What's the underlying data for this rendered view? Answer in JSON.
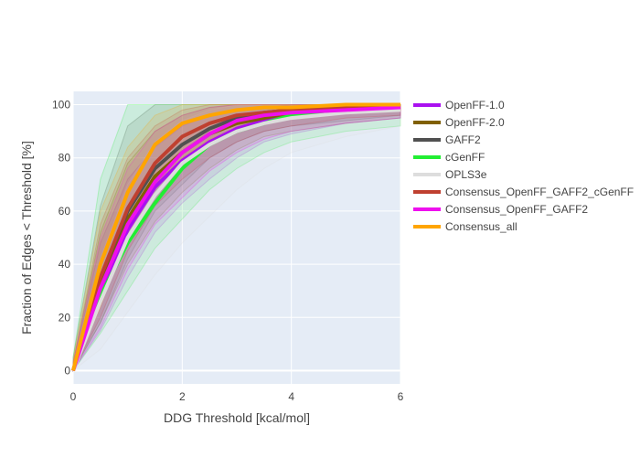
{
  "chart_data": {
    "type": "line",
    "title": "",
    "xlabel": "DDG Threshold [kcal/mol]",
    "ylabel": "Fraction of Edges < Threshold [%]",
    "xlim": [
      0,
      6
    ],
    "ylim": [
      -5,
      105
    ],
    "x_ticks": [
      0,
      2,
      4,
      6
    ],
    "y_ticks": [
      0,
      20,
      40,
      60,
      80,
      100
    ],
    "grid": true,
    "legend_position": "right",
    "plot_bgcolor": "#e5ecf6",
    "x": [
      0,
      0.5,
      1,
      1.5,
      2,
      2.5,
      3,
      3.5,
      4,
      5,
      6
    ],
    "series": [
      {
        "name": "OpenFF-1.0",
        "color": "#aa10f0",
        "values": [
          0,
          30,
          53,
          69,
          79,
          86,
          91,
          94,
          96,
          98,
          99
        ],
        "lower": [
          0,
          15,
          35,
          52,
          63,
          72,
          80,
          86,
          89,
          93,
          95
        ],
        "upper": [
          2,
          48,
          72,
          84,
          92,
          96,
          98,
          99,
          100,
          100,
          100
        ]
      },
      {
        "name": "OpenFF-2.0",
        "color": "#806000",
        "values": [
          0,
          33,
          57,
          73,
          82,
          89,
          93,
          95,
          97,
          98,
          99
        ],
        "lower": [
          0,
          18,
          40,
          56,
          67,
          76,
          83,
          88,
          90,
          93,
          95
        ],
        "upper": [
          3,
          52,
          78,
          90,
          96,
          99,
          100,
          100,
          100,
          100,
          100
        ]
      },
      {
        "name": "GAFF2",
        "color": "#505050",
        "values": [
          0,
          35,
          60,
          76,
          85,
          91,
          95,
          97,
          98,
          99,
          99
        ],
        "lower": [
          0,
          18,
          42,
          60,
          70,
          80,
          86,
          90,
          92,
          94,
          96
        ],
        "upper": [
          5,
          62,
          92,
          100,
          100,
          100,
          100,
          100,
          100,
          100,
          100
        ]
      },
      {
        "name": "cGenFF",
        "color": "#22ee33",
        "values": [
          0,
          28,
          48,
          63,
          76,
          85,
          90,
          93,
          96,
          98,
          99
        ],
        "lower": [
          0,
          14,
          30,
          46,
          57,
          68,
          76,
          82,
          86,
          90,
          92
        ],
        "upper": [
          5,
          72,
          100,
          100,
          100,
          100,
          100,
          100,
          100,
          100,
          100
        ]
      },
      {
        "name": "OPLS3e",
        "color": "#dddddd",
        "values": [
          0,
          26,
          50,
          66,
          78,
          85,
          90,
          93,
          95,
          97,
          98
        ],
        "lower": [
          0,
          8,
          22,
          36,
          48,
          58,
          68,
          76,
          82,
          88,
          92
        ],
        "upper": [
          3,
          42,
          70,
          86,
          94,
          98,
          100,
          100,
          100,
          100,
          100
        ]
      },
      {
        "name": "Consensus_OpenFF_GAFF2_cGenFF",
        "color": "#bf4030",
        "values": [
          0,
          35,
          61,
          78,
          88,
          93,
          96,
          97,
          98,
          99,
          99
        ],
        "lower": [
          0,
          20,
          45,
          62,
          72,
          80,
          86,
          90,
          92,
          95,
          96
        ],
        "upper": [
          3,
          55,
          80,
          92,
          98,
          100,
          100,
          100,
          100,
          100,
          100
        ]
      },
      {
        "name": "Consensus_OpenFF_GAFF2",
        "color": "#ee10ee",
        "values": [
          0,
          31,
          55,
          71,
          82,
          89,
          94,
          96,
          97,
          98,
          99
        ],
        "lower": [
          0,
          16,
          38,
          55,
          65,
          75,
          82,
          87,
          90,
          93,
          95
        ],
        "upper": [
          3,
          50,
          76,
          90,
          96,
          99,
          100,
          100,
          100,
          100,
          100
        ]
      },
      {
        "name": "Consensus_all",
        "color": "#ffa500",
        "values": [
          0,
          40,
          67,
          85,
          93,
          96,
          98,
          99,
          99,
          100,
          100
        ],
        "lower": [
          0,
          24,
          52,
          70,
          80,
          87,
          91,
          94,
          95,
          97,
          98
        ],
        "upper": [
          4,
          60,
          84,
          96,
          100,
          100,
          100,
          100,
          100,
          100,
          100
        ]
      }
    ]
  }
}
